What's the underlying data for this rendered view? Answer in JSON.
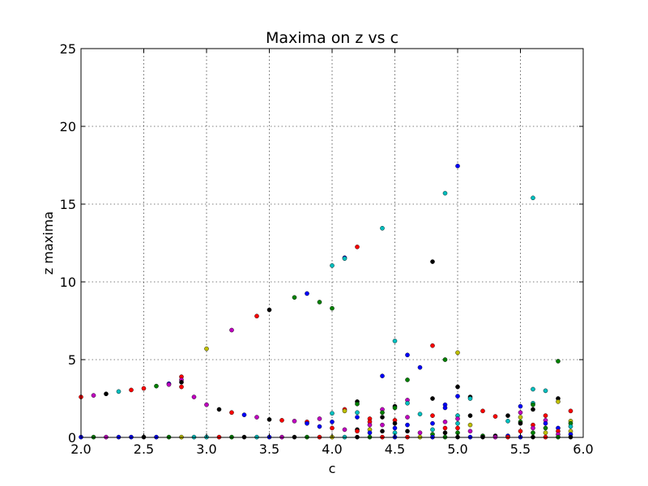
{
  "chart_data": {
    "type": "scatter",
    "title": "Maxima on z vs c",
    "xlabel": "c",
    "ylabel": "z maxima",
    "xlim": [
      2.0,
      6.0
    ],
    "ylim": [
      0,
      25
    ],
    "xticks": [
      "2.0",
      "2.5",
      "3.0",
      "3.5",
      "4.0",
      "4.5",
      "5.0",
      "5.5",
      "6.0"
    ],
    "yticks": [
      "0",
      "5",
      "10",
      "15",
      "20",
      "25"
    ],
    "grid": true,
    "legend": "none",
    "colors": {
      "b": "#0000ff",
      "g": "#008000",
      "r": "#ff0000",
      "c": "#00bfbf",
      "m": "#bf00bf",
      "y": "#bfbf00",
      "k": "#000000"
    },
    "points": [
      [
        2.0,
        2.6,
        "r"
      ],
      [
        2.0,
        0.02,
        "b"
      ],
      [
        2.1,
        2.7,
        "m"
      ],
      [
        2.1,
        0.02,
        "g"
      ],
      [
        2.2,
        2.8,
        "k"
      ],
      [
        2.2,
        0.02,
        "m"
      ],
      [
        2.3,
        2.95,
        "c"
      ],
      [
        2.3,
        0.02,
        "b"
      ],
      [
        2.4,
        3.05,
        "r"
      ],
      [
        2.4,
        0.02,
        "b"
      ],
      [
        2.5,
        3.15,
        "r"
      ],
      [
        2.5,
        0.02,
        "k"
      ],
      [
        2.6,
        3.3,
        "g"
      ],
      [
        2.6,
        0.02,
        "b"
      ],
      [
        2.7,
        3.45,
        "b"
      ],
      [
        2.7,
        3.4,
        "m"
      ],
      [
        2.7,
        0.02,
        "g"
      ],
      [
        2.8,
        3.9,
        "r"
      ],
      [
        2.8,
        3.7,
        "m"
      ],
      [
        2.8,
        3.55,
        "k"
      ],
      [
        2.8,
        3.25,
        "r"
      ],
      [
        2.8,
        0.02,
        "y"
      ],
      [
        2.9,
        2.6,
        "m"
      ],
      [
        2.9,
        0.02,
        "c"
      ],
      [
        3.0,
        5.7,
        "y"
      ],
      [
        3.0,
        2.1,
        "m"
      ],
      [
        3.0,
        0.02,
        "c"
      ],
      [
        3.1,
        1.8,
        "k"
      ],
      [
        3.1,
        0.02,
        "r"
      ],
      [
        3.2,
        6.9,
        "m"
      ],
      [
        3.2,
        1.6,
        "r"
      ],
      [
        3.2,
        0.02,
        "g"
      ],
      [
        3.3,
        1.45,
        "b"
      ],
      [
        3.3,
        0.02,
        "k"
      ],
      [
        3.4,
        7.8,
        "r"
      ],
      [
        3.4,
        1.3,
        "m"
      ],
      [
        3.4,
        0.02,
        "c"
      ],
      [
        3.5,
        8.2,
        "k"
      ],
      [
        3.5,
        1.15,
        "k"
      ],
      [
        3.5,
        0.02,
        "b"
      ],
      [
        3.6,
        1.1,
        "r"
      ],
      [
        3.6,
        0.02,
        "m"
      ],
      [
        3.7,
        9.0,
        "g"
      ],
      [
        3.7,
        1.05,
        "m"
      ],
      [
        3.7,
        0.02,
        "k"
      ],
      [
        3.8,
        9.25,
        "b"
      ],
      [
        3.8,
        1.0,
        "r"
      ],
      [
        3.8,
        0.9,
        "b"
      ],
      [
        3.8,
        0.02,
        "g"
      ],
      [
        3.9,
        8.7,
        "g"
      ],
      [
        3.9,
        1.2,
        "m"
      ],
      [
        3.9,
        0.7,
        "b"
      ],
      [
        3.9,
        0.02,
        "r"
      ],
      [
        4.0,
        11.05,
        "c"
      ],
      [
        4.0,
        8.3,
        "g"
      ],
      [
        4.0,
        1.55,
        "c"
      ],
      [
        4.0,
        1.0,
        "b"
      ],
      [
        4.0,
        0.6,
        "r"
      ],
      [
        4.0,
        0.02,
        "y"
      ],
      [
        4.1,
        11.55,
        "b"
      ],
      [
        4.1,
        11.5,
        "c"
      ],
      [
        4.1,
        1.8,
        "r"
      ],
      [
        4.1,
        1.7,
        "y"
      ],
      [
        4.1,
        0.5,
        "m"
      ],
      [
        4.1,
        0.02,
        "c"
      ],
      [
        4.2,
        12.25,
        "r"
      ],
      [
        4.2,
        2.3,
        "k"
      ],
      [
        4.2,
        2.15,
        "g"
      ],
      [
        4.2,
        1.6,
        "c"
      ],
      [
        4.2,
        1.3,
        "b"
      ],
      [
        4.2,
        0.5,
        "k"
      ],
      [
        4.2,
        0.4,
        "r"
      ],
      [
        4.2,
        0.02,
        "k"
      ],
      [
        4.3,
        1.2,
        "r"
      ],
      [
        4.3,
        1.0,
        "r"
      ],
      [
        4.3,
        0.8,
        "m"
      ],
      [
        4.3,
        0.5,
        "y"
      ],
      [
        4.3,
        0.3,
        "b"
      ],
      [
        4.3,
        0.02,
        "g"
      ],
      [
        4.4,
        13.45,
        "c"
      ],
      [
        4.4,
        3.95,
        "b"
      ],
      [
        4.4,
        1.8,
        "m"
      ],
      [
        4.4,
        1.6,
        "g"
      ],
      [
        4.4,
        1.3,
        "k"
      ],
      [
        4.4,
        0.8,
        "m"
      ],
      [
        4.4,
        0.4,
        "k"
      ],
      [
        4.4,
        0.02,
        "r"
      ],
      [
        4.5,
        6.2,
        "c"
      ],
      [
        4.5,
        2.0,
        "k"
      ],
      [
        4.5,
        1.9,
        "g"
      ],
      [
        4.5,
        1.1,
        "r"
      ],
      [
        4.5,
        0.9,
        "k"
      ],
      [
        4.5,
        0.6,
        "b"
      ],
      [
        4.5,
        0.3,
        "c"
      ],
      [
        4.5,
        0.02,
        "b"
      ],
      [
        4.6,
        5.3,
        "b"
      ],
      [
        4.6,
        3.7,
        "g"
      ],
      [
        4.6,
        2.4,
        "m"
      ],
      [
        4.6,
        2.2,
        "c"
      ],
      [
        4.6,
        1.3,
        "m"
      ],
      [
        4.6,
        0.8,
        "b"
      ],
      [
        4.6,
        0.4,
        "k"
      ],
      [
        4.6,
        0.02,
        "r"
      ],
      [
        4.7,
        4.5,
        "b"
      ],
      [
        4.7,
        1.5,
        "c"
      ],
      [
        4.7,
        0.3,
        "m"
      ],
      [
        4.7,
        0.02,
        "y"
      ],
      [
        4.8,
        11.3,
        "k"
      ],
      [
        4.8,
        5.9,
        "r"
      ],
      [
        4.8,
        2.5,
        "k"
      ],
      [
        4.8,
        1.4,
        "r"
      ],
      [
        4.8,
        0.9,
        "b"
      ],
      [
        4.8,
        0.5,
        "c"
      ],
      [
        4.8,
        0.2,
        "g"
      ],
      [
        4.8,
        0.02,
        "b"
      ],
      [
        4.9,
        15.7,
        "c"
      ],
      [
        4.9,
        5.0,
        "g"
      ],
      [
        4.9,
        2.1,
        "b"
      ],
      [
        4.9,
        1.9,
        "b"
      ],
      [
        4.9,
        1.0,
        "m"
      ],
      [
        4.9,
        0.6,
        "r"
      ],
      [
        4.9,
        0.3,
        "k"
      ],
      [
        4.9,
        0.02,
        "g"
      ],
      [
        5.0,
        17.45,
        "b"
      ],
      [
        5.0,
        5.45,
        "y"
      ],
      [
        5.0,
        3.25,
        "k"
      ],
      [
        5.0,
        2.65,
        "b"
      ],
      [
        5.0,
        1.4,
        "c"
      ],
      [
        5.0,
        1.2,
        "m"
      ],
      [
        5.0,
        0.9,
        "c"
      ],
      [
        5.0,
        0.6,
        "r"
      ],
      [
        5.0,
        0.3,
        "g"
      ],
      [
        5.0,
        0.02,
        "k"
      ],
      [
        5.1,
        2.6,
        "k"
      ],
      [
        5.1,
        2.5,
        "c"
      ],
      [
        5.1,
        1.4,
        "k"
      ],
      [
        5.1,
        0.8,
        "y"
      ],
      [
        5.1,
        0.4,
        "m"
      ],
      [
        5.1,
        0.02,
        "b"
      ],
      [
        5.2,
        1.7,
        "r"
      ],
      [
        5.2,
        0.1,
        "g"
      ],
      [
        5.2,
        0.02,
        "k"
      ],
      [
        5.3,
        1.35,
        "r"
      ],
      [
        5.3,
        0.1,
        "k"
      ],
      [
        5.3,
        0.02,
        "m"
      ],
      [
        5.4,
        1.4,
        "k"
      ],
      [
        5.4,
        1.05,
        "c"
      ],
      [
        5.4,
        0.1,
        "b"
      ],
      [
        5.4,
        0.02,
        "r"
      ],
      [
        5.5,
        2.0,
        "b"
      ],
      [
        5.5,
        1.6,
        "m"
      ],
      [
        5.5,
        1.3,
        "y"
      ],
      [
        5.5,
        1.0,
        "g"
      ],
      [
        5.5,
        0.9,
        "k"
      ],
      [
        5.5,
        0.4,
        "r"
      ],
      [
        5.5,
        0.02,
        "b"
      ],
      [
        5.6,
        15.4,
        "c"
      ],
      [
        5.6,
        3.1,
        "c"
      ],
      [
        5.6,
        2.2,
        "c"
      ],
      [
        5.6,
        2.1,
        "g"
      ],
      [
        5.6,
        1.8,
        "k"
      ],
      [
        5.6,
        0.8,
        "r"
      ],
      [
        5.6,
        0.6,
        "m"
      ],
      [
        5.6,
        0.3,
        "g"
      ],
      [
        5.6,
        0.02,
        "k"
      ],
      [
        5.7,
        3.0,
        "c"
      ],
      [
        5.7,
        1.4,
        "r"
      ],
      [
        5.7,
        1.1,
        "m"
      ],
      [
        5.7,
        0.9,
        "b"
      ],
      [
        5.7,
        0.6,
        "g"
      ],
      [
        5.7,
        0.3,
        "y"
      ],
      [
        5.7,
        0.02,
        "r"
      ],
      [
        5.8,
        4.9,
        "g"
      ],
      [
        5.8,
        2.5,
        "k"
      ],
      [
        5.8,
        2.3,
        "y"
      ],
      [
        5.8,
        0.6,
        "b"
      ],
      [
        5.8,
        0.4,
        "r"
      ],
      [
        5.8,
        0.2,
        "m"
      ],
      [
        5.8,
        0.02,
        "g"
      ],
      [
        5.9,
        1.7,
        "r"
      ],
      [
        5.9,
        1.05,
        "y"
      ],
      [
        5.9,
        0.9,
        "g"
      ],
      [
        5.9,
        0.7,
        "c"
      ],
      [
        5.9,
        0.4,
        "y"
      ],
      [
        5.9,
        0.2,
        "b"
      ],
      [
        5.9,
        0.02,
        "k"
      ]
    ]
  }
}
